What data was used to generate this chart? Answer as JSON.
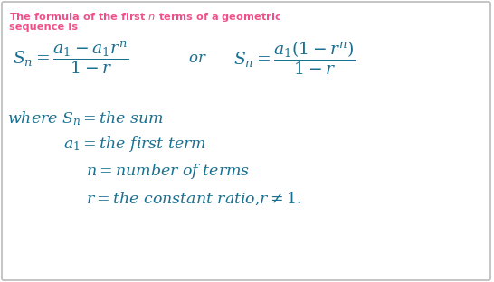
{
  "bg_color": "#ffffff",
  "title_color": "#f0508a",
  "formula_color": "#1a7090",
  "fig_width": 5.46,
  "fig_height": 3.12,
  "dpi": 100
}
